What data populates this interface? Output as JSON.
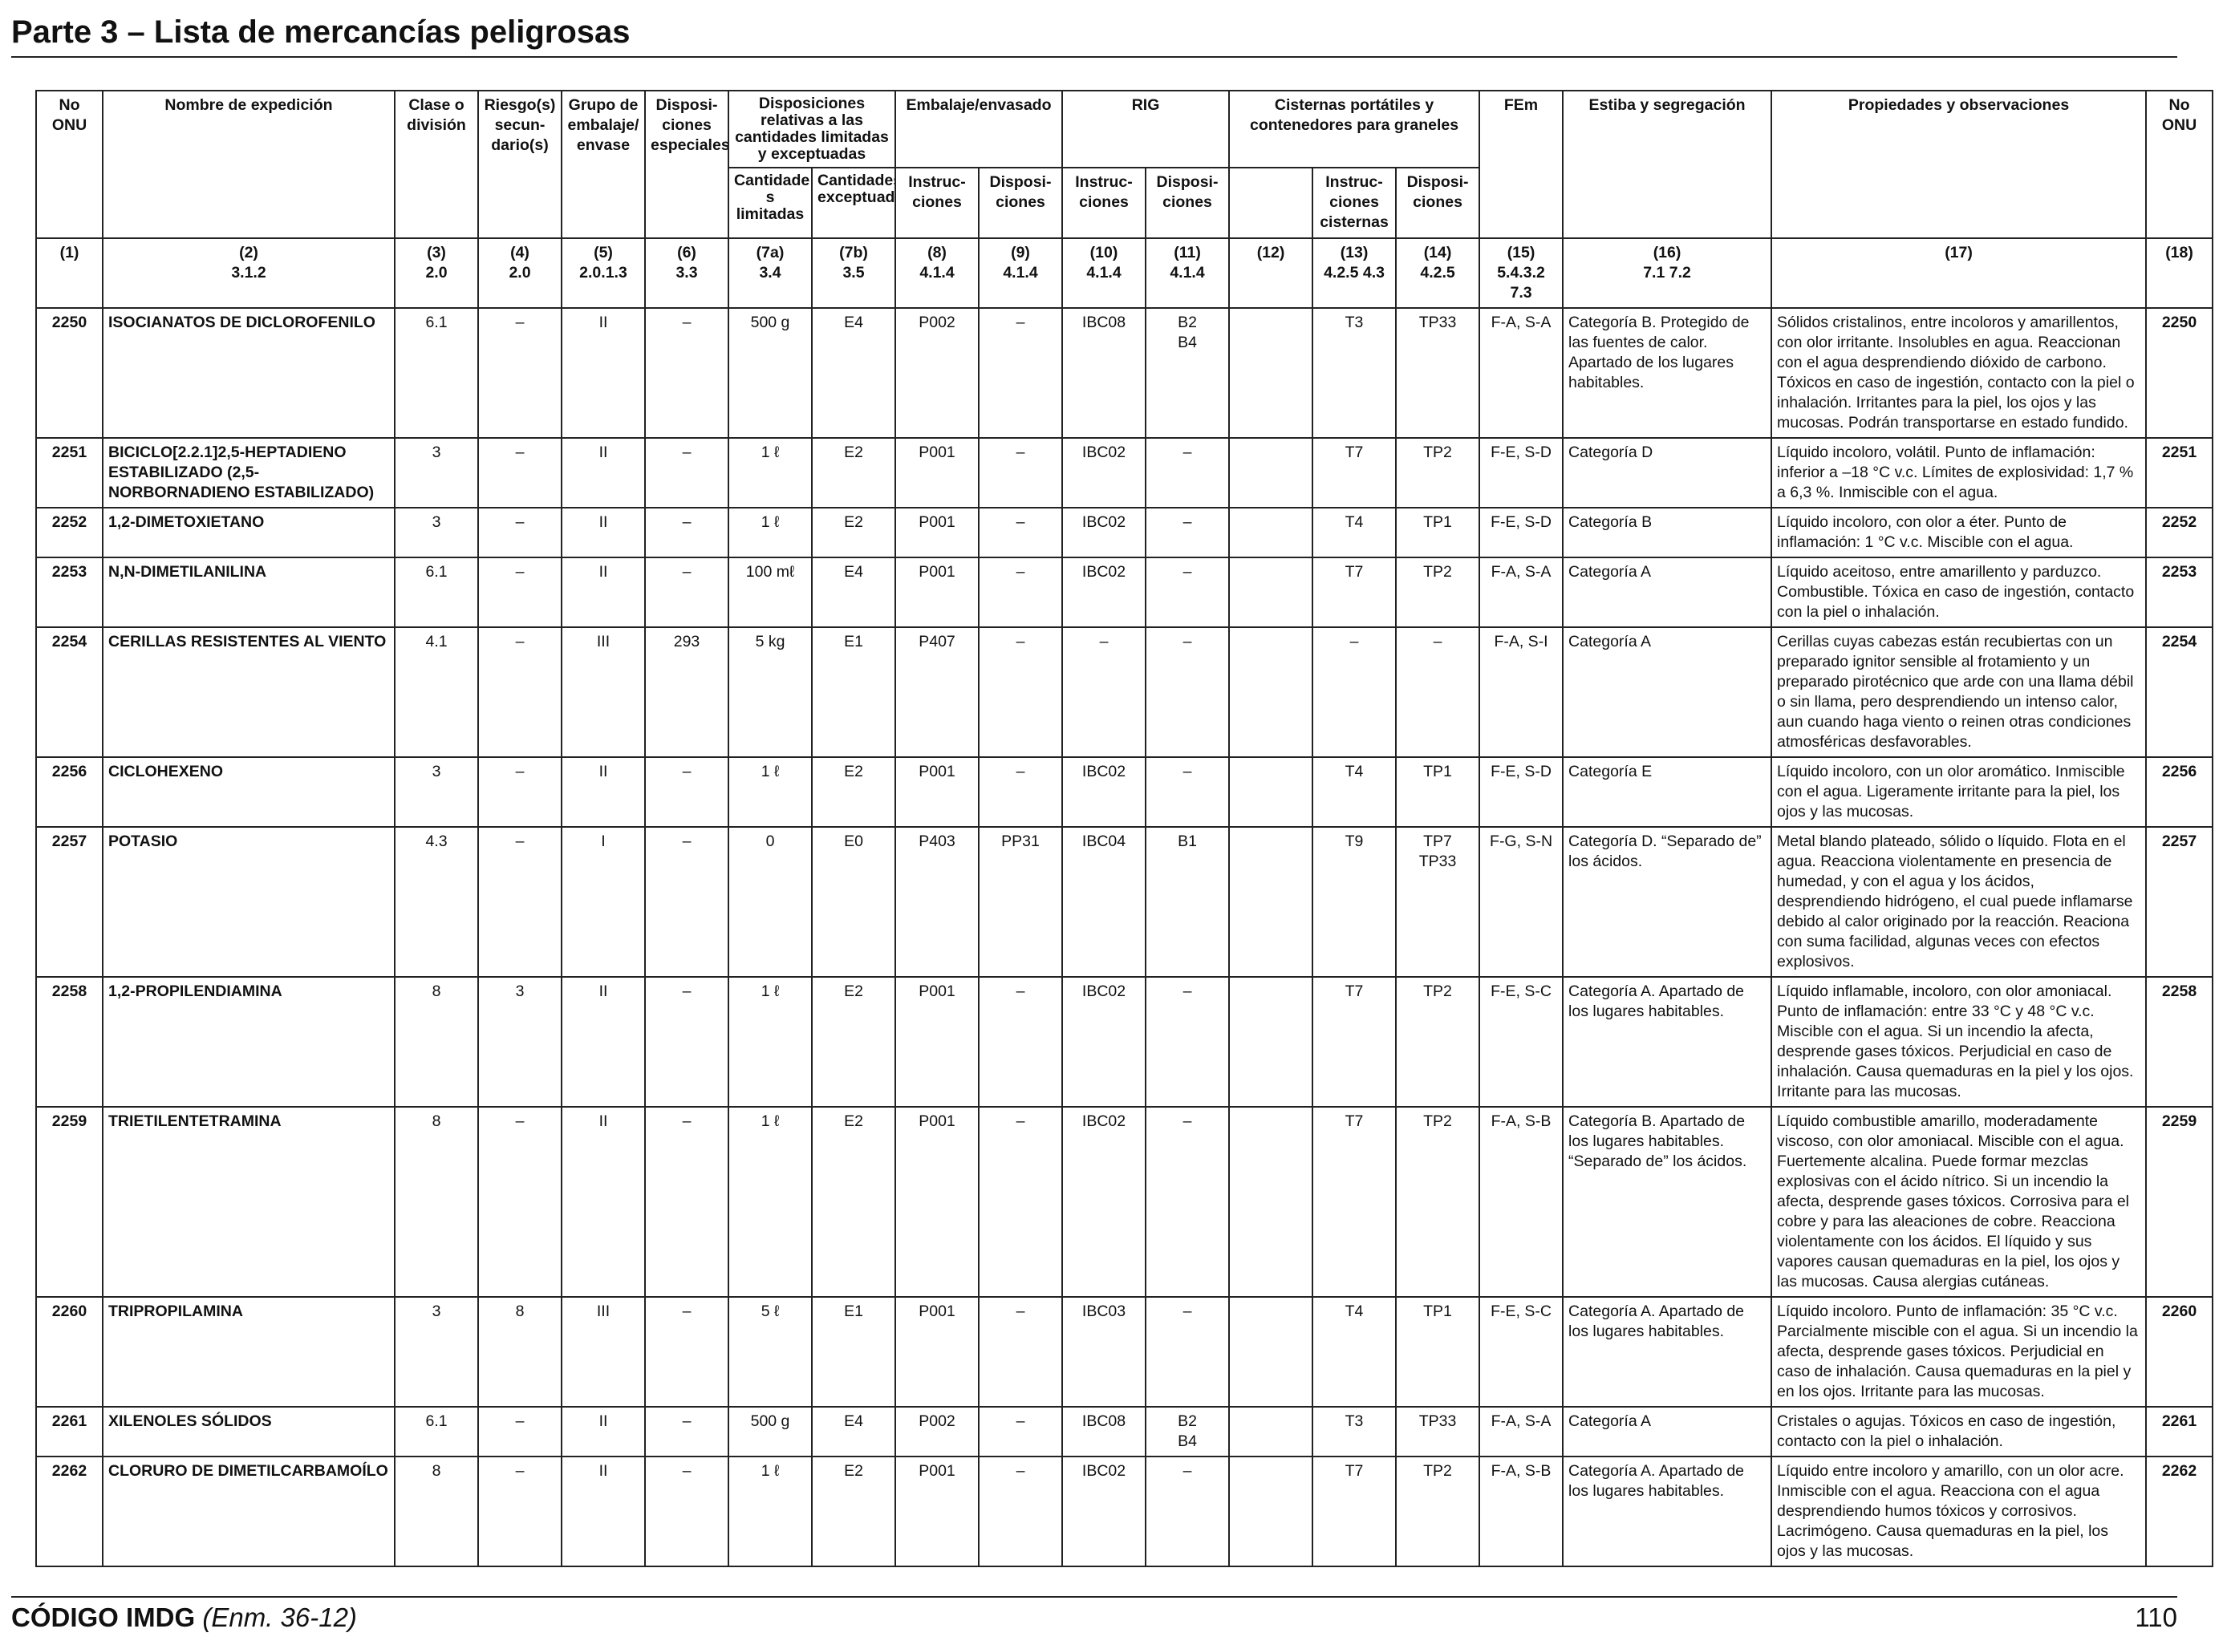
{
  "page": {
    "title": "Parte 3 – Lista de mercancías peligrosas",
    "footer_code": "CÓDIGO IMDG",
    "footer_amend": "(Enm. 36-12)",
    "page_number": "110"
  },
  "headers": {
    "no_onu": "No ONU",
    "nombre": "Nombre de expedición",
    "clase": "Clase o división",
    "riesgo": "Riesgo(s) secun-dario(s)",
    "grupo": "Grupo de embalaje/ envase",
    "dispos_esp": "Disposi-ciones especiales",
    "disp_cant": "Disposiciones relativas a las cantidades limitadas y exceptuadas",
    "cant_lim": "Cantidade s limitadas",
    "cant_exc": "Cantidades exceptuadas",
    "embalaje": "Embalaje/envasado",
    "instruc": "Instruc-ciones",
    "dispos": "Disposi-ciones",
    "rig": "RIG",
    "cisternas": "Cisternas portátiles y contenedores para graneles",
    "instruc_cist": "Instruc-ciones cisternas",
    "fem": "FEm",
    "estiba": "Estiba y segregación",
    "propiedades": "Propiedades y observaciones",
    "no_onu_r": "No ONU"
  },
  "colnums": [
    [
      "(1)",
      ""
    ],
    [
      "(2)",
      "3.1.2"
    ],
    [
      "(3)",
      "2.0"
    ],
    [
      "(4)",
      "2.0"
    ],
    [
      "(5)",
      "2.0.1.3"
    ],
    [
      "(6)",
      "3.3"
    ],
    [
      "(7a)",
      "3.4"
    ],
    [
      "(7b)",
      "3.5"
    ],
    [
      "(8)",
      "4.1.4"
    ],
    [
      "(9)",
      "4.1.4"
    ],
    [
      "(10)",
      "4.1.4"
    ],
    [
      "(11)",
      "4.1.4"
    ],
    [
      "(12)",
      ""
    ],
    [
      "(13)",
      "4.2.5 4.3"
    ],
    [
      "(14)",
      "4.2.5"
    ],
    [
      "(15)",
      "5.4.3.2 7.3"
    ],
    [
      "(16)",
      "7.1 7.2"
    ],
    [
      "(17)",
      ""
    ],
    [
      "(18)",
      ""
    ]
  ],
  "rows": [
    {
      "un": "2250",
      "name": "ISOCIANATOS DE DICLOROFENILO",
      "cls": "6.1",
      "sub": "–",
      "pg": "II",
      "sp": "–",
      "lq": "500 g",
      "eq": "E4",
      "pi": "P002",
      "pp": "–",
      "ibc": "IBC08",
      "ibcp": "B2 B4",
      "c12": "",
      "tank": "T3",
      "tp": "TP33",
      "ems": "F-A, S-A",
      "stow": "Categoría B. Protegido de las fuentes de calor. Apartado de los lugares habitables.",
      "prop": "Sólidos cristalinos, entre incoloros y amarillentos, con olor irritante. Insolubles en agua. Reaccionan con el agua desprendiendo dióxido de carbono. Tóxicos en caso de ingestión, contacto con la piel o inhalación. Irritantes para la piel, los ojos y las mucosas. Podrán transportarse en estado fundido."
    },
    {
      "un": "2251",
      "name": "BICICLO[2.2.1]2,5-HEPTADIENO ESTABILIZADO (2,5-NORBORNADIENO ESTABILIZADO)",
      "cls": "3",
      "sub": "–",
      "pg": "II",
      "sp": "–",
      "lq": "1 ℓ",
      "eq": "E2",
      "pi": "P001",
      "pp": "–",
      "ibc": "IBC02",
      "ibcp": "–",
      "c12": "",
      "tank": "T7",
      "tp": "TP2",
      "ems": "F-E, S-D",
      "stow": "Categoría D",
      "prop": "Líquido incoloro, volátil. Punto de inflamación: inferior a –18 °C v.c. Límites de explosividad: 1,7 % a 6,3 %. Inmiscible con el agua."
    },
    {
      "un": "2252",
      "name": "1,2-DIMETOXIETANO",
      "cls": "3",
      "sub": "–",
      "pg": "II",
      "sp": "–",
      "lq": "1 ℓ",
      "eq": "E2",
      "pi": "P001",
      "pp": "–",
      "ibc": "IBC02",
      "ibcp": "–",
      "c12": "",
      "tank": "T4",
      "tp": "TP1",
      "ems": "F-E, S-D",
      "stow": "Categoría B",
      "prop": "Líquido incoloro, con olor a éter. Punto de inflamación: 1 °C v.c. Miscible con el agua."
    },
    {
      "un": "2253",
      "name": "N,N-DIMETILANILINA",
      "cls": "6.1",
      "sub": "–",
      "pg": "II",
      "sp": "–",
      "lq": "100 mℓ",
      "eq": "E4",
      "pi": "P001",
      "pp": "–",
      "ibc": "IBC02",
      "ibcp": "–",
      "c12": "",
      "tank": "T7",
      "tp": "TP2",
      "ems": "F-A, S-A",
      "stow": "Categoría A",
      "prop": "Líquido aceitoso, entre amarillento y parduzco. Combustible. Tóxica en caso de ingestión, contacto con la piel o inhalación."
    },
    {
      "un": "2254",
      "name": "CERILLAS RESISTENTES AL VIENTO",
      "cls": "4.1",
      "sub": "–",
      "pg": "III",
      "sp": "293",
      "lq": "5 kg",
      "eq": "E1",
      "pi": "P407",
      "pp": "–",
      "ibc": "–",
      "ibcp": "–",
      "c12": "",
      "tank": "–",
      "tp": "–",
      "ems": "F-A, S-I",
      "stow": "Categoría A",
      "prop": "Cerillas cuyas cabezas están recubiertas con un preparado ignitor sensible al frotamiento y un preparado pirotécnico que arde con una llama débil o sin llama, pero desprendiendo un intenso calor, aun cuando haga viento o reinen otras condiciones atmosféricas desfavorables."
    },
    {
      "un": "2256",
      "name": "CICLOHEXENO",
      "cls": "3",
      "sub": "–",
      "pg": "II",
      "sp": "–",
      "lq": "1 ℓ",
      "eq": "E2",
      "pi": "P001",
      "pp": "–",
      "ibc": "IBC02",
      "ibcp": "–",
      "c12": "",
      "tank": "T4",
      "tp": "TP1",
      "ems": "F-E, S-D",
      "stow": "Categoría E",
      "prop": "Líquido incoloro, con un olor aromático. Inmiscible con el agua. Ligeramente irritante para la piel, los ojos y las mucosas."
    },
    {
      "un": "2257",
      "name": "POTASIO",
      "cls": "4.3",
      "sub": "–",
      "pg": "I",
      "sp": "–",
      "lq": "0",
      "eq": "E0",
      "pi": "P403",
      "pp": "PP31",
      "ibc": "IBC04",
      "ibcp": "B1",
      "c12": "",
      "tank": "T9",
      "tp": "TP7 TP33",
      "ems": "F-G, S-N",
      "stow": "Categoría D. “Separado de” los ácidos.",
      "prop": "Metal blando plateado, sólido o líquido. Flota en el agua. Reacciona violentamente en presencia de humedad, y con el agua y los ácidos, desprendiendo hidrógeno, el cual puede inflamarse debido al calor originado por la reacción. Reaciona con suma facilidad, algunas veces con efectos explosivos."
    },
    {
      "un": "2258",
      "name": "1,2-PROPILENDIAMINA",
      "cls": "8",
      "sub": "3",
      "pg": "II",
      "sp": "–",
      "lq": "1 ℓ",
      "eq": "E2",
      "pi": "P001",
      "pp": "–",
      "ibc": "IBC02",
      "ibcp": "–",
      "c12": "",
      "tank": "T7",
      "tp": "TP2",
      "ems": "F-E, S-C",
      "stow": "Categoría A. Apartado de los lugares habitables.",
      "prop": "Líquido inflamable, incoloro, con olor amoniacal. Punto de inflamación: entre 33 °C y 48 °C v.c. Miscible con el agua. Si un incendio la afecta, desprende gases tóxicos. Perjudicial en caso de inhalación. Causa quemaduras en la piel y los ojos. Irritante para las mucosas."
    },
    {
      "un": "2259",
      "name": "TRIETILENTETRAMINA",
      "cls": "8",
      "sub": "–",
      "pg": "II",
      "sp": "–",
      "lq": "1 ℓ",
      "eq": "E2",
      "pi": "P001",
      "pp": "–",
      "ibc": "IBC02",
      "ibcp": "–",
      "c12": "",
      "tank": "T7",
      "tp": "TP2",
      "ems": "F-A, S-B",
      "stow": "Categoría B. Apartado de los lugares habitables. “Separado de” los ácidos.",
      "prop": "Líquido combustible amarillo, moderadamente viscoso, con olor amoniacal. Miscible con el agua. Fuertemente alcalina. Puede formar mezclas explosivas con el ácido nítrico. Si un incendio la afecta, desprende gases tóxicos. Corrosiva para el cobre y para las aleaciones de cobre. Reacciona violentamente con los ácidos. El líquido y sus vapores causan quemaduras en la piel, los ojos y las mucosas. Causa alergias cutáneas."
    },
    {
      "un": "2260",
      "name": "TRIPROPILAMINA",
      "cls": "3",
      "sub": "8",
      "pg": "III",
      "sp": "–",
      "lq": "5 ℓ",
      "eq": "E1",
      "pi": "P001",
      "pp": "–",
      "ibc": "IBC03",
      "ibcp": "–",
      "c12": "",
      "tank": "T4",
      "tp": "TP1",
      "ems": "F-E, S-C",
      "stow": "Categoría A. Apartado de los lugares habitables.",
      "prop": "Líquido incoloro. Punto de inflamación: 35 °C v.c. Parcialmente miscible con el agua. Si un incendio la afecta, desprende gases tóxicos. Perjudicial en caso de inhalación. Causa quemaduras en la piel y en los ojos. Irritante para las mucosas."
    },
    {
      "un": "2261",
      "name": "XILENOLES SÓLIDOS",
      "cls": "6.1",
      "sub": "–",
      "pg": "II",
      "sp": "–",
      "lq": "500 g",
      "eq": "E4",
      "pi": "P002",
      "pp": "–",
      "ibc": "IBC08",
      "ibcp": "B2 B4",
      "c12": "",
      "tank": "T3",
      "tp": "TP33",
      "ems": "F-A, S-A",
      "stow": "Categoría A",
      "prop": "Cristales o agujas. Tóxicos en caso de ingestión, contacto con la piel o inhalación."
    },
    {
      "un": "2262",
      "name": "CLORURO DE DIMETILCARBAMOÍLO",
      "cls": "8",
      "sub": "–",
      "pg": "II",
      "sp": "–",
      "lq": "1 ℓ",
      "eq": "E2",
      "pi": "P001",
      "pp": "–",
      "ibc": "IBC02",
      "ibcp": "–",
      "c12": "",
      "tank": "T7",
      "tp": "TP2",
      "ems": "F-A, S-B",
      "stow": "Categoría A. Apartado de los lugares habitables.",
      "prop": "Líquido entre incoloro y amarillo, con un olor acre. Inmiscible con el agua. Reacciona con el agua desprendiendo humos tóxicos y corrosivos. Lacrimógeno. Causa quemaduras en la piel, los ojos y las mucosas."
    }
  ]
}
